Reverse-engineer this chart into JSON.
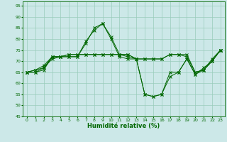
{
  "xlabel": "Humidité relative (%)",
  "bg_color": "#cce8e8",
  "grid_color": "#99ccbb",
  "line_color": "#006600",
  "xlim": [
    -0.5,
    23.5
  ],
  "ylim": [
    45,
    97
  ],
  "yticks": [
    45,
    50,
    55,
    60,
    65,
    70,
    75,
    80,
    85,
    90,
    95
  ],
  "xticks": [
    0,
    1,
    2,
    3,
    4,
    5,
    6,
    7,
    8,
    9,
    10,
    11,
    12,
    13,
    14,
    15,
    16,
    17,
    18,
    19,
    20,
    21,
    22,
    23
  ],
  "lines": [
    [
      65,
      65,
      66,
      72,
      72,
      72,
      72,
      79,
      84,
      87,
      81,
      73,
      72,
      71,
      55,
      54,
      55,
      63,
      65,
      71,
      64,
      66,
      71,
      75
    ],
    [
      65,
      65,
      67,
      71,
      72,
      72,
      72,
      78,
      85,
      87,
      80,
      72,
      71,
      71,
      55,
      54,
      55,
      65,
      65,
      71,
      64,
      67,
      70,
      75
    ],
    [
      65,
      66,
      67,
      72,
      72,
      73,
      73,
      73,
      73,
      73,
      73,
      73,
      73,
      71,
      71,
      71,
      71,
      73,
      73,
      72,
      65,
      66,
      70,
      75
    ],
    [
      65,
      66,
      68,
      72,
      72,
      73,
      73,
      73,
      73,
      73,
      73,
      73,
      73,
      71,
      71,
      71,
      71,
      73,
      73,
      73,
      65,
      66,
      70,
      75
    ]
  ]
}
